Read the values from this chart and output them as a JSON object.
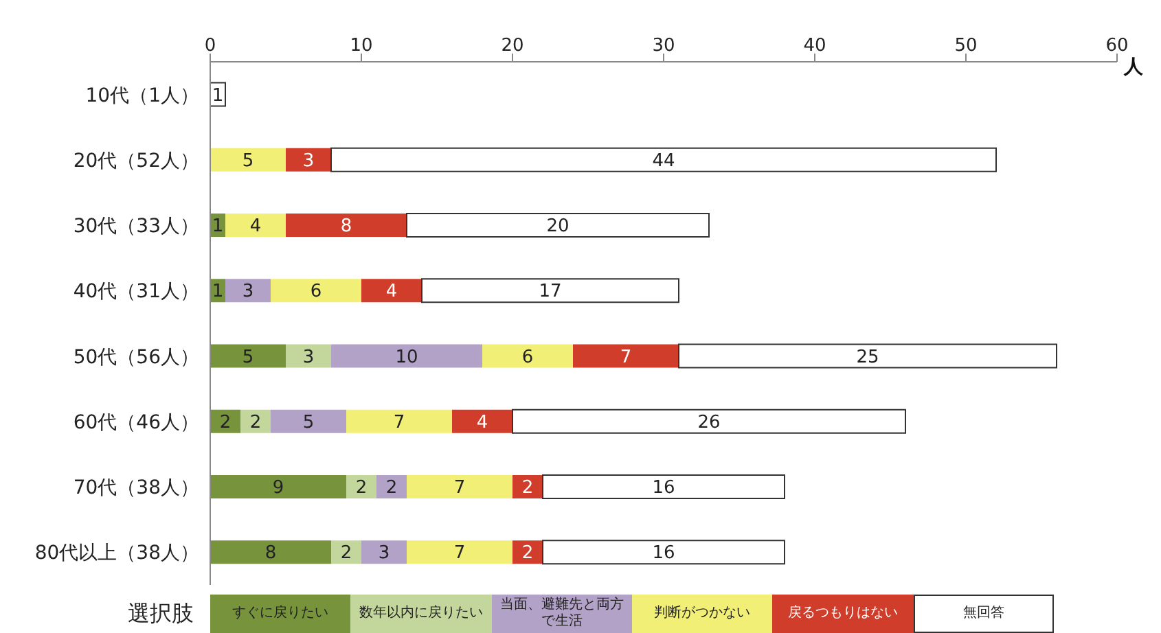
{
  "chart_data": {
    "type": "bar",
    "orientation": "horizontal",
    "stacked": true,
    "xlabel": "人",
    "legend_title": "選択肢",
    "legend": "bottom",
    "data_labels": true,
    "xlim": [
      0,
      60
    ],
    "xticks": [
      0,
      10,
      20,
      30,
      40,
      50,
      60
    ],
    "categories": [
      "10代（1人）",
      "20代（52人）",
      "30代（33人）",
      "40代（31人）",
      "50代（56人）",
      "60代（46人）",
      "70代（38人）",
      "80代以上（38人）"
    ],
    "series": [
      {
        "name": "すぐに戻りたい",
        "color": "#77933c",
        "values": [
          null,
          null,
          1,
          1,
          5,
          2,
          9,
          8
        ]
      },
      {
        "name": "数年以内に戻りたい",
        "color": "#c3d69b",
        "values": [
          null,
          null,
          null,
          null,
          3,
          2,
          2,
          2
        ]
      },
      {
        "name": "当面、避難先と両方で生活",
        "color": "#b3a2c7",
        "values": [
          null,
          null,
          null,
          3,
          10,
          5,
          2,
          3
        ]
      },
      {
        "name": "判断がつかない",
        "color": "#f2ef77",
        "values": [
          null,
          5,
          4,
          6,
          6,
          7,
          7,
          7
        ]
      },
      {
        "name": "戻るつもりはない",
        "color": "#d03d2a",
        "values": [
          null,
          3,
          8,
          4,
          7,
          4,
          2,
          2
        ]
      },
      {
        "name": "無回答",
        "color": "#ffffff",
        "values": [
          1,
          44,
          20,
          17,
          25,
          26,
          16,
          16
        ]
      }
    ]
  }
}
